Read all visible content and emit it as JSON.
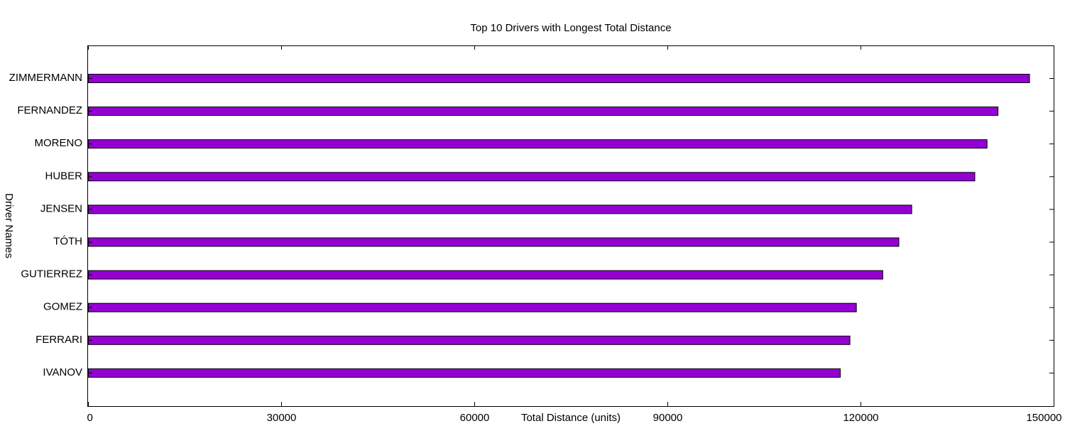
{
  "chart_data": {
    "type": "bar",
    "orientation": "horizontal",
    "title": "Top 10 Drivers with Longest Total Distance",
    "xlabel": "Total Distance (units)",
    "ylabel": "Driver Names",
    "categories": [
      "ZIMMERMANN",
      "FERNANDEZ",
      "MORENO",
      "HUBER",
      "JENSEN",
      "TÓTH",
      "GUTIERREZ",
      "GOMEZ",
      "FERRARI",
      "IVANOV"
    ],
    "values": [
      146200,
      141300,
      139600,
      137700,
      127900,
      125900,
      123400,
      119300,
      118300,
      116800
    ],
    "xlim": [
      0,
      150000
    ],
    "xticks": [
      0,
      30000,
      60000,
      90000,
      120000,
      150000
    ],
    "xtick_labels": [
      "0",
      "30000",
      "60000",
      "90000",
      "120000",
      "150000"
    ],
    "bar_color": "#9400d3",
    "grid": false,
    "legend": "none"
  }
}
